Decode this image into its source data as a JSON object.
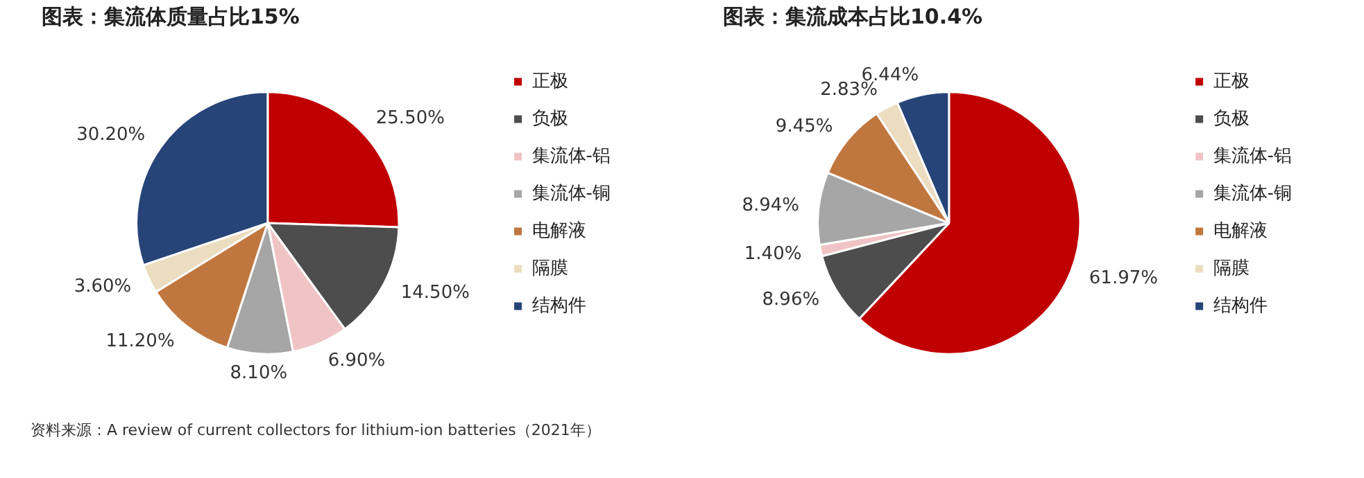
{
  "chart_data": [
    {
      "type": "pie",
      "title": "图表：集流体质量占比15%",
      "categories": [
        "正极",
        "负极",
        "集流体-铝",
        "集流体-铜",
        "电解液",
        "隔膜",
        "结构件"
      ],
      "values": [
        25.5,
        14.5,
        6.9,
        8.1,
        11.2,
        3.6,
        30.2
      ],
      "value_labels": [
        "25.50%",
        "14.50%",
        "6.90%",
        "8.10%",
        "11.20%",
        "3.60%",
        "30.20%"
      ],
      "colors": [
        "#c00000",
        "#4d4d4d",
        "#f0c4c4",
        "#a6a6a6",
        "#c0773f",
        "#ecdcc0",
        "#264478"
      ],
      "legend": "right",
      "annotations": [
        "资料来源：A review of current collectors for lithium-ion batteries（2021年）"
      ]
    },
    {
      "type": "pie",
      "title": "图表：集流成本占比10.4%",
      "categories": [
        "正极",
        "负极",
        "集流体-铝",
        "集流体-铜",
        "电解液",
        "隔膜",
        "结构件"
      ],
      "values": [
        61.97,
        8.96,
        1.4,
        8.94,
        9.45,
        2.83,
        6.44
      ],
      "value_labels": [
        "61.97%",
        "8.96%",
        "1.40%",
        "8.94%",
        "9.45%",
        "2.83%",
        "6.44%"
      ],
      "colors": [
        "#c00000",
        "#4d4d4d",
        "#f0c4c4",
        "#a6a6a6",
        "#c0773f",
        "#ecdcc0",
        "#264478"
      ],
      "legend": "right"
    }
  ]
}
